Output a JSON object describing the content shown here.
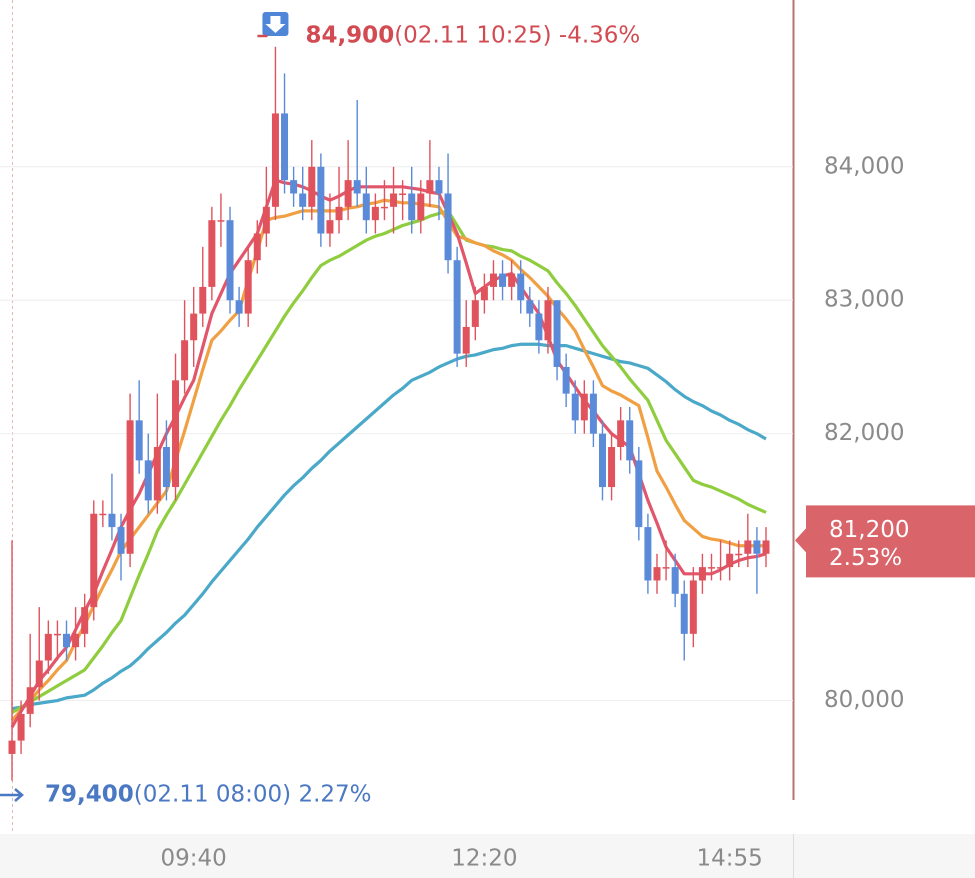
{
  "chart_data": {
    "type": "candlestick",
    "up_color": "#e0535d",
    "down_color": "#5b8ad8",
    "ylim": [
      79000,
      85250
    ],
    "yticks": [
      {
        "value": 80000,
        "label": "80,000"
      },
      {
        "value": 82000,
        "label": "82,000"
      },
      {
        "value": 83000,
        "label": "83,000"
      },
      {
        "value": 84000,
        "label": "84,000"
      }
    ],
    "grid": true,
    "categories": [
      null,
      null,
      null,
      null,
      null,
      null,
      null,
      null,
      null,
      null,
      null,
      null,
      null,
      null,
      null,
      null,
      null,
      null,
      null,
      null,
      "09:40",
      null,
      null,
      null,
      null,
      null,
      null,
      null,
      null,
      null,
      null,
      null,
      null,
      null,
      null,
      null,
      null,
      null,
      null,
      null,
      null,
      null,
      null,
      null,
      null,
      null,
      null,
      null,
      null,
      null,
      null,
      null,
      "12:20",
      null,
      null,
      null,
      null,
      null,
      null,
      null,
      null,
      null,
      null,
      null,
      null,
      null,
      null,
      null,
      null,
      null,
      null,
      null,
      null,
      null,
      null,
      null,
      null,
      null,
      null,
      "14:55",
      null,
      null,
      null,
      null
    ],
    "ohlc": [
      [
        79600,
        81200,
        79400,
        79700
      ],
      [
        79700,
        80000,
        79600,
        79900
      ],
      [
        79900,
        80500,
        79800,
        80100
      ],
      [
        80100,
        80700,
        80000,
        80300
      ],
      [
        80300,
        80600,
        80200,
        80500
      ],
      [
        80500,
        80600,
        80300,
        80500
      ],
      [
        80500,
        80600,
        80300,
        80400
      ],
      [
        80400,
        80700,
        80300,
        80500
      ],
      [
        80500,
        80800,
        80400,
        80700
      ],
      [
        80700,
        81500,
        80600,
        81400
      ],
      [
        81400,
        81500,
        81300,
        81400
      ],
      [
        81400,
        81700,
        81200,
        81300
      ],
      [
        81300,
        81400,
        80900,
        81100
      ],
      [
        81100,
        82300,
        81000,
        82100
      ],
      [
        82100,
        82400,
        81700,
        81800
      ],
      [
        81800,
        82000,
        81400,
        81500
      ],
      [
        81500,
        82300,
        81400,
        81900
      ],
      [
        81900,
        82100,
        81500,
        81600
      ],
      [
        81600,
        82600,
        81500,
        82400
      ],
      [
        82400,
        83000,
        82300,
        82700
      ],
      [
        82700,
        83100,
        82500,
        82900
      ],
      [
        82900,
        83400,
        82800,
        83100
      ],
      [
        83100,
        83700,
        83000,
        83600
      ],
      [
        83600,
        83800,
        83400,
        83600
      ],
      [
        83600,
        83700,
        82900,
        83000
      ],
      [
        83000,
        83100,
        82800,
        82900
      ],
      [
        82900,
        83400,
        82800,
        83300
      ],
      [
        83300,
        83600,
        83200,
        83500
      ],
      [
        83500,
        84000,
        83400,
        83700
      ],
      [
        83700,
        84900,
        83600,
        84400
      ],
      [
        84400,
        84700,
        83800,
        83900
      ],
      [
        83900,
        84000,
        83700,
        83800
      ],
      [
        83800,
        84000,
        83600,
        83700
      ],
      [
        83700,
        84200,
        83600,
        84000
      ],
      [
        84000,
        84100,
        83400,
        83500
      ],
      [
        83500,
        83800,
        83400,
        83600
      ],
      [
        83600,
        84000,
        83500,
        83700
      ],
      [
        83700,
        84200,
        83600,
        83900
      ],
      [
        83900,
        84500,
        83700,
        83800
      ],
      [
        83800,
        84000,
        83500,
        83600
      ],
      [
        83600,
        83800,
        83500,
        83700
      ],
      [
        83700,
        83900,
        83600,
        83700
      ],
      [
        83700,
        84000,
        83500,
        83800
      ],
      [
        83800,
        83900,
        83600,
        83800
      ],
      [
        83800,
        84000,
        83500,
        83600
      ],
      [
        83600,
        83900,
        83500,
        83800
      ],
      [
        83800,
        84200,
        83700,
        83900
      ],
      [
        83900,
        84000,
        83600,
        83800
      ],
      [
        83800,
        84100,
        83200,
        83300
      ],
      [
        83300,
        83400,
        82500,
        82600
      ],
      [
        82600,
        83000,
        82500,
        82800
      ],
      [
        82800,
        83100,
        82700,
        83000
      ],
      [
        83000,
        83200,
        82900,
        83100
      ],
      [
        83100,
        83300,
        83000,
        83200
      ],
      [
        83200,
        83300,
        83000,
        83100
      ],
      [
        83100,
        83300,
        83000,
        83200
      ],
      [
        83200,
        83300,
        82900,
        83000
      ],
      [
        83000,
        83100,
        82800,
        82900
      ],
      [
        82900,
        83000,
        82600,
        82700
      ],
      [
        82700,
        83100,
        82600,
        83000
      ],
      [
        83000,
        83000,
        82400,
        82500
      ],
      [
        82500,
        82600,
        82200,
        82300
      ],
      [
        82300,
        82400,
        82000,
        82100
      ],
      [
        82100,
        82400,
        82000,
        82300
      ],
      [
        82300,
        82400,
        81900,
        82000
      ],
      [
        82000,
        82100,
        81500,
        81600
      ],
      [
        81600,
        82000,
        81500,
        81900
      ],
      [
        81900,
        82200,
        81800,
        82100
      ],
      [
        82100,
        82200,
        81700,
        81800
      ],
      [
        81800,
        81900,
        81200,
        81300
      ],
      [
        81300,
        81400,
        80800,
        80900
      ],
      [
        80900,
        81100,
        80800,
        81000
      ],
      [
        81000,
        81200,
        80900,
        81000
      ],
      [
        81000,
        81100,
        80700,
        80800
      ],
      [
        80800,
        80900,
        80300,
        80500
      ],
      [
        80500,
        81000,
        80400,
        80900
      ],
      [
        80900,
        81100,
        80800,
        81000
      ],
      [
        81000,
        81100,
        80900,
        81000
      ],
      [
        81000,
        81200,
        80900,
        81000
      ],
      [
        81000,
        81200,
        80900,
        81100
      ],
      [
        81100,
        81200,
        81000,
        81100
      ],
      [
        81100,
        81400,
        81000,
        81200
      ],
      [
        81200,
        81300,
        80800,
        81100
      ],
      [
        81100,
        81300,
        81000,
        81200
      ]
    ],
    "series": [
      {
        "color": "#4aa8c8",
        "values": [
          79940,
          79950,
          79970,
          79980,
          79990,
          80000,
          80020,
          80030,
          80040,
          80080,
          80130,
          80170,
          80220,
          80260,
          80320,
          80390,
          80450,
          80510,
          80580,
          80640,
          80720,
          80800,
          80890,
          80970,
          81050,
          81130,
          81210,
          81300,
          81380,
          81460,
          81540,
          81610,
          81670,
          81740,
          81800,
          81870,
          81930,
          81990,
          82050,
          82110,
          82170,
          82230,
          82290,
          82340,
          82400,
          82430,
          82460,
          82500,
          82530,
          82560,
          82580,
          82590,
          82610,
          82630,
          82640,
          82660,
          82670,
          82670,
          82670,
          82660,
          82660,
          82660,
          82640,
          82620,
          82600,
          82580,
          82560,
          82540,
          82530,
          82510,
          82490,
          82440,
          82390,
          82330,
          82280,
          82240,
          82210,
          82170,
          82140,
          82100,
          82070,
          82030,
          82000,
          81960
        ]
      },
      {
        "color": "#8fcd3e",
        "values": [
          79910,
          79950,
          79990,
          80030,
          80070,
          80110,
          80150,
          80190,
          80230,
          80320,
          80410,
          80510,
          80600,
          80770,
          80940,
          81100,
          81270,
          81390,
          81500,
          81620,
          81740,
          81860,
          81980,
          82100,
          82210,
          82330,
          82440,
          82550,
          82660,
          82770,
          82880,
          82980,
          83070,
          83170,
          83260,
          83300,
          83330,
          83370,
          83410,
          83450,
          83480,
          83500,
          83530,
          83560,
          83580,
          83600,
          83630,
          83650,
          83670,
          83560,
          83450,
          83430,
          83410,
          83400,
          83380,
          83370,
          83330,
          83300,
          83260,
          83220,
          83130,
          83050,
          82960,
          82860,
          82760,
          82660,
          82580,
          82500,
          82410,
          82330,
          82250,
          82100,
          81950,
          81850,
          81750,
          81650,
          81620,
          81600,
          81570,
          81540,
          81510,
          81470,
          81440,
          81410
        ]
      },
      {
        "color": "#f0a043",
        "values": [
          79850,
          79930,
          80000,
          80080,
          80150,
          80230,
          80300,
          80440,
          80570,
          80710,
          80850,
          80980,
          81120,
          81210,
          81300,
          81390,
          81480,
          81570,
          81800,
          82020,
          82250,
          82480,
          82700,
          82770,
          82850,
          82920,
          83150,
          83370,
          83600,
          83620,
          83630,
          83650,
          83670,
          83670,
          83670,
          83670,
          83670,
          83690,
          83700,
          83720,
          83730,
          83750,
          83740,
          83730,
          83730,
          83720,
          83710,
          83700,
          83590,
          83480,
          83460,
          83430,
          83410,
          83370,
          83340,
          83300,
          83230,
          83170,
          83100,
          83030,
          82940,
          82860,
          82770,
          82630,
          82500,
          82360,
          82320,
          82290,
          82250,
          82210,
          81970,
          81720,
          81600,
          81470,
          81350,
          81290,
          81230,
          81210,
          81200,
          81180,
          81160,
          81160,
          81160,
          81160
        ]
      },
      {
        "color": "#e2566b",
        "values": [
          79800,
          79920,
          80030,
          80150,
          80230,
          80320,
          80400,
          80530,
          80670,
          80800,
          80970,
          81130,
          81300,
          81430,
          81550,
          81700,
          81850,
          82000,
          82130,
          82270,
          82400,
          82650,
          82900,
          83050,
          83200,
          83300,
          83400,
          83500,
          83700,
          83900,
          83880,
          83870,
          83850,
          83820,
          83780,
          83750,
          83780,
          83820,
          83850,
          83850,
          83850,
          83850,
          83850,
          83850,
          83840,
          83830,
          83810,
          83800,
          83650,
          83500,
          83280,
          83050,
          83100,
          83150,
          83180,
          83200,
          83100,
          83000,
          82900,
          82730,
          82550,
          82450,
          82350,
          82250,
          82170,
          82080,
          82000,
          81950,
          81900,
          81700,
          81500,
          81330,
          81150,
          81050,
          80950,
          80950,
          80950,
          80950,
          80980,
          81020,
          81050,
          81070,
          81080,
          81100
        ]
      }
    ],
    "high_marker": {
      "price": {
        "value": 84900,
        "label": "84,900"
      },
      "text": "(02.11 10:25) -4.36%",
      "color": "#d24b52"
    },
    "low_marker": {
      "price": {
        "value": 79400,
        "label": "79,400"
      },
      "text": "(02.11 08:00) 2.27%",
      "color": "#4a78c2"
    },
    "last_price": {
      "price": {
        "value": 81200,
        "label": "81,200"
      },
      "change": "2.53%",
      "color": "#d9646a"
    }
  }
}
